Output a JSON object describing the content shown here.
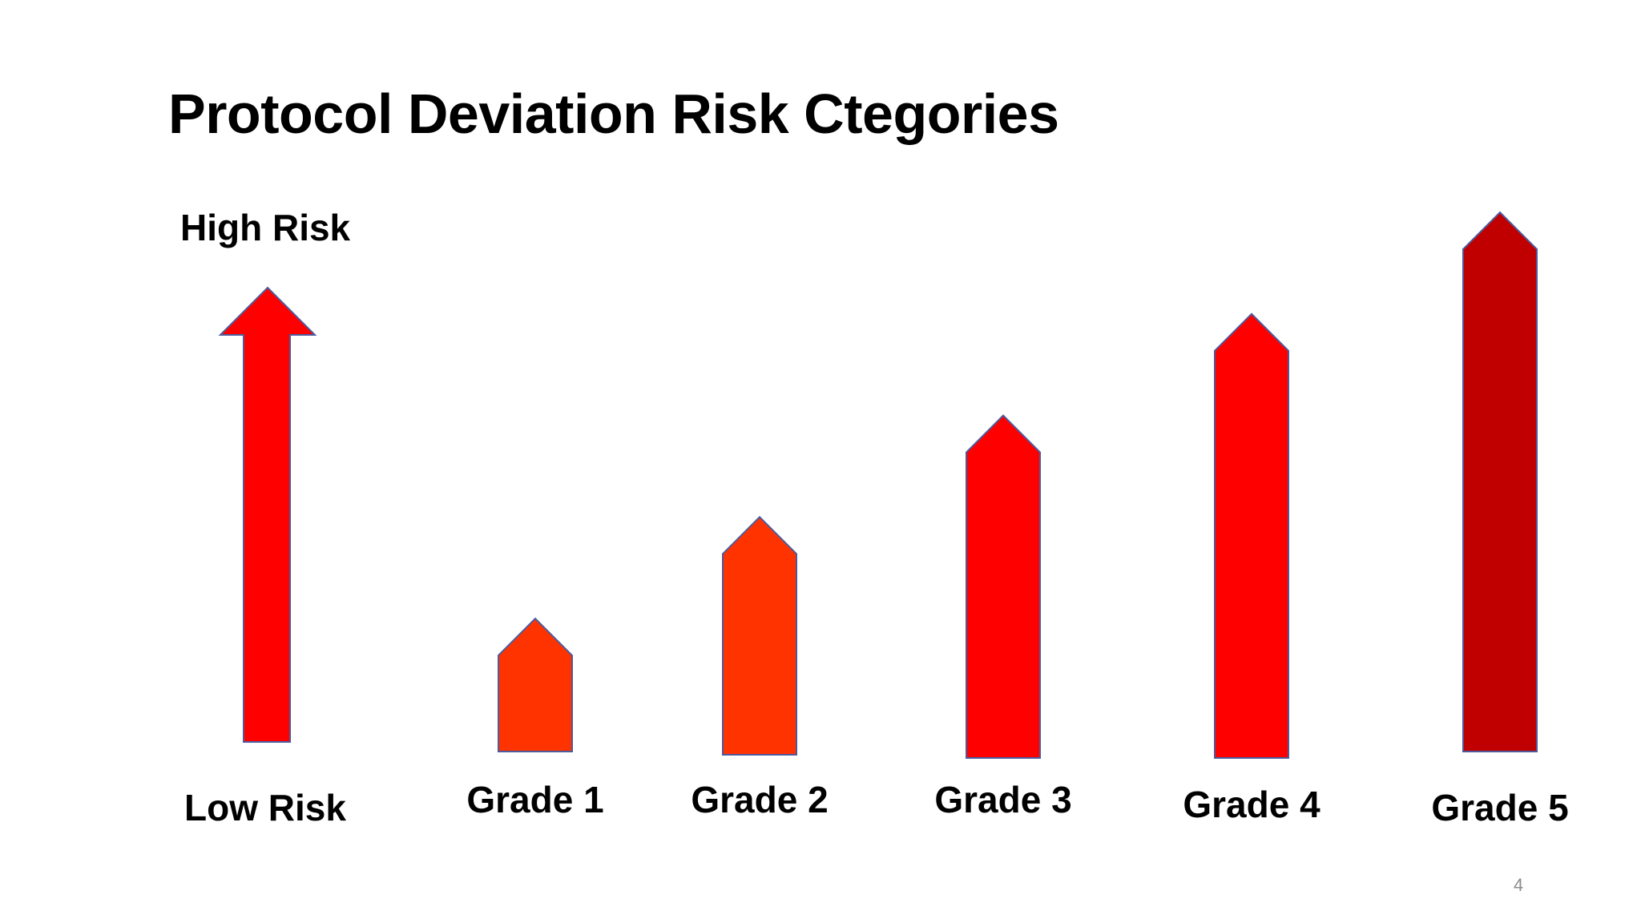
{
  "slide": {
    "title": "Protocol Deviation Risk Ctegories",
    "page_number": "4"
  },
  "scale": {
    "high_label": "High Risk",
    "low_label": "Low Risk"
  },
  "chart_data": {
    "type": "bar",
    "title": "Protocol Deviation Risk Ctegories",
    "categories": [
      "Grade 1",
      "Grade 2",
      "Grade 3",
      "Grade 4",
      "Grade 5"
    ],
    "values": [
      1,
      2,
      3,
      4,
      5
    ],
    "ylabel_high": "High Risk",
    "ylabel_low": "Low Risk",
    "colors": [
      "#ff3300",
      "#ff3300",
      "#ff0000",
      "#ff0000",
      "#c00000"
    ],
    "outline_color": "#4d5a9c"
  },
  "colors": {
    "scale_arrow": "#ff0000",
    "outline": "#4d5a9c"
  }
}
